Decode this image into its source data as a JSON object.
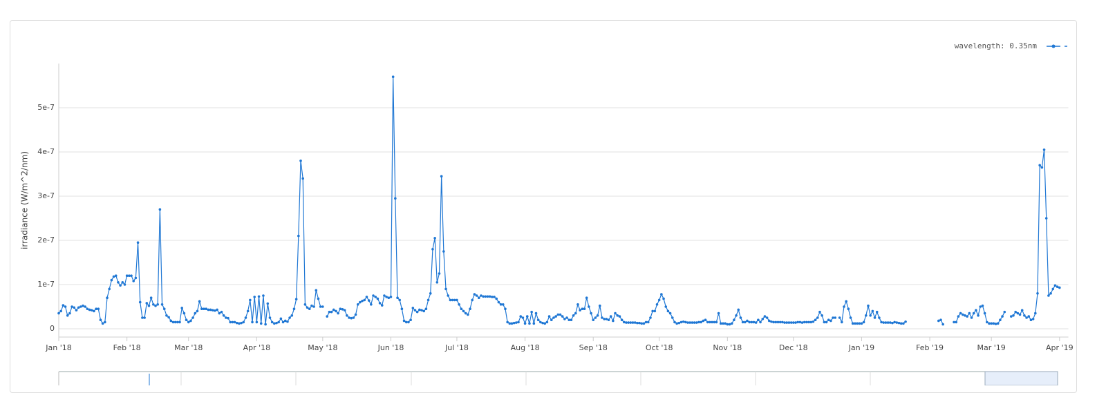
{
  "chart_data": {
    "type": "line",
    "y_label": "irradiance (W/m^2/nm)",
    "xlim": [
      0,
      459
    ],
    "xticks": [
      {
        "value": 0,
        "label": "Jan '18"
      },
      {
        "value": 31,
        "label": "Feb '18"
      },
      {
        "value": 59,
        "label": "Mar '18"
      },
      {
        "value": 90,
        "label": "Apr '18"
      },
      {
        "value": 120,
        "label": "May '18"
      },
      {
        "value": 151,
        "label": "Jun '18"
      },
      {
        "value": 181,
        "label": "Jul '18"
      },
      {
        "value": 212,
        "label": "Aug '18"
      },
      {
        "value": 243,
        "label": "Sep '18"
      },
      {
        "value": 273,
        "label": "Oct '18"
      },
      {
        "value": 304,
        "label": "Nov '18"
      },
      {
        "value": 334,
        "label": "Dec '18"
      },
      {
        "value": 365,
        "label": "Jan '19"
      },
      {
        "value": 396,
        "label": "Feb '19"
      },
      {
        "value": 424,
        "label": "Mar '19"
      },
      {
        "value": 455,
        "label": "Apr '19"
      }
    ],
    "ylim": [
      0,
      6e-07
    ],
    "yticks": [
      0,
      {
        "value": 1e-07,
        "label": "1e-7"
      },
      {
        "value": 2e-07,
        "label": "2e-7"
      },
      {
        "value": 3e-07,
        "label": "3e-7"
      },
      {
        "value": 4e-07,
        "label": "4e-7"
      },
      {
        "value": 5e-07,
        "label": "5e-7"
      }
    ],
    "grid": true,
    "legend": "top-right",
    "series": [
      {
        "name": "wavelength: 0.35nm",
        "color": "#1f77d4",
        "values": [
          3.5e-08,
          4e-08,
          5.3e-08,
          5e-08,
          3e-08,
          3.5e-08,
          5e-08,
          4.8e-08,
          4.2e-08,
          4.8e-08,
          5e-08,
          5.2e-08,
          5e-08,
          4.5e-08,
          4.3e-08,
          4.2e-08,
          4e-08,
          4.5e-08,
          4.5e-08,
          2e-08,
          1.2e-08,
          1.5e-08,
          7e-08,
          9e-08,
          1.1e-07,
          1.18e-07,
          1.2e-07,
          1.05e-07,
          9.8e-08,
          1.05e-07,
          1e-07,
          1.2e-07,
          1.2e-07,
          1.2e-07,
          1.08e-07,
          1.15e-07,
          1.95e-07,
          6e-08,
          2.5e-08,
          2.5e-08,
          5.8e-08,
          5.2e-08,
          7e-08,
          5.5e-08,
          5.2e-08,
          5.5e-08,
          2.7e-07,
          5.5e-08,
          4.5e-08,
          3e-08,
          2.6e-08,
          1.8e-08,
          1.5e-08,
          1.5e-08,
          1.5e-08,
          1.5e-08,
          4.7e-08,
          3.5e-08,
          2e-08,
          1.5e-08,
          1.8e-08,
          2.5e-08,
          3.5e-08,
          4e-08,
          6.2e-08,
          4.5e-08,
          4.5e-08,
          4.5e-08,
          4.3e-08,
          4.3e-08,
          4.2e-08,
          4.1e-08,
          4.3e-08,
          3.5e-08,
          3.8e-08,
          3e-08,
          2.5e-08,
          2.4e-08,
          1.5e-08,
          1.5e-08,
          1.5e-08,
          1.3e-08,
          1.2e-08,
          1.3e-08,
          1.5e-08,
          2.5e-08,
          4e-08,
          6.5e-08,
          1.5e-08,
          7.2e-08,
          1.5e-08,
          7.3e-08,
          1.2e-08,
          7.5e-08,
          1e-08,
          5.7e-08,
          2.5e-08,
          1.5e-08,
          1.2e-08,
          1.3e-08,
          1.5e-08,
          2.3e-08,
          1.5e-08,
          1.8e-08,
          1.6e-08,
          2.5e-08,
          3e-08,
          4.5e-08,
          6.7e-08,
          2.1e-07,
          3.8e-07,
          3.4e-07,
          5.5e-08,
          4.8e-08,
          4.5e-08,
          5.2e-08,
          5e-08,
          8.7e-08,
          6.8e-08,
          5e-08,
          5e-08,
          null,
          2.8e-08,
          3.8e-08,
          3.8e-08,
          4.3e-08,
          4e-08,
          3.5e-08,
          4.5e-08,
          4.4e-08,
          4.2e-08,
          3e-08,
          2.5e-08,
          2.4e-08,
          2.5e-08,
          3.2e-08,
          5.5e-08,
          6e-08,
          6.3e-08,
          6.5e-08,
          7.2e-08,
          6.4e-08,
          5.5e-08,
          7.5e-08,
          7.2e-08,
          6.8e-08,
          5.8e-08,
          5.3e-08,
          7.5e-08,
          7.2e-08,
          7e-08,
          7.2e-08,
          5.7e-07,
          2.95e-07,
          7e-08,
          6.5e-08,
          4.5e-08,
          1.8e-08,
          1.5e-08,
          1.5e-08,
          2e-08,
          4.7e-08,
          4.2e-08,
          3.8e-08,
          4.3e-08,
          4.2e-08,
          4e-08,
          4.5e-08,
          6.5e-08,
          8e-08,
          1.8e-07,
          2.05e-07,
          1.05e-07,
          1.25e-07,
          3.45e-07,
          1.75e-07,
          9e-08,
          7.5e-08,
          6.5e-08,
          6.5e-08,
          6.5e-08,
          6.5e-08,
          5.5e-08,
          4.5e-08,
          4e-08,
          3.5e-08,
          3.2e-08,
          4.5e-08,
          6.5e-08,
          7.8e-08,
          7.5e-08,
          7e-08,
          7.5e-08,
          7.3e-08,
          7.3e-08,
          7.3e-08,
          7.3e-08,
          7.2e-08,
          7.2e-08,
          6.8e-08,
          6e-08,
          5.5e-08,
          5.5e-08,
          4.5e-08,
          1.5e-08,
          1.2e-08,
          1.2e-08,
          1.3e-08,
          1.4e-08,
          1.5e-08,
          2.8e-08,
          2.5e-08,
          1.2e-08,
          2.8e-08,
          1.2e-08,
          3.8e-08,
          1.2e-08,
          3.5e-08,
          2e-08,
          1.5e-08,
          1.3e-08,
          1.2e-08,
          1.5e-08,
          2.8e-08,
          2e-08,
          2.5e-08,
          2.8e-08,
          3.2e-08,
          3.2e-08,
          2.8e-08,
          2.2e-08,
          2.5e-08,
          2e-08,
          2e-08,
          3e-08,
          3.5e-08,
          5.5e-08,
          4.2e-08,
          4.5e-08,
          4.5e-08,
          7e-08,
          5e-08,
          3.5e-08,
          2e-08,
          2.5e-08,
          3e-08,
          5.2e-08,
          2.5e-08,
          2.2e-08,
          2.2e-08,
          2e-08,
          2.8e-08,
          1.8e-08,
          3.5e-08,
          3e-08,
          2.8e-08,
          2e-08,
          1.5e-08,
          1.4e-08,
          1.4e-08,
          1.4e-08,
          1.4e-08,
          1.4e-08,
          1.3e-08,
          1.3e-08,
          1.2e-08,
          1.2e-08,
          1.5e-08,
          1.5e-08,
          2.5e-08,
          4e-08,
          4e-08,
          5.5e-08,
          6.5e-08,
          7.8e-08,
          6.8e-08,
          5e-08,
          4e-08,
          3.5e-08,
          2.5e-08,
          1.5e-08,
          1.2e-08,
          1.3e-08,
          1.5e-08,
          1.6e-08,
          1.5e-08,
          1.4e-08,
          1.4e-08,
          1.4e-08,
          1.4e-08,
          1.4e-08,
          1.5e-08,
          1.5e-08,
          1.8e-08,
          2e-08,
          1.5e-08,
          1.5e-08,
          1.5e-08,
          1.5e-08,
          1.5e-08,
          3.5e-08,
          1.2e-08,
          1.2e-08,
          1.2e-08,
          1e-08,
          1e-08,
          1.2e-08,
          2e-08,
          3e-08,
          4.3e-08,
          2.5e-08,
          1.5e-08,
          1.5e-08,
          1.8e-08,
          1.5e-08,
          1.5e-08,
          1.5e-08,
          1.4e-08,
          2e-08,
          1.5e-08,
          2.2e-08,
          2.8e-08,
          2.5e-08,
          1.8e-08,
          1.6e-08,
          1.5e-08,
          1.5e-08,
          1.5e-08,
          1.5e-08,
          1.5e-08,
          1.4e-08,
          1.4e-08,
          1.4e-08,
          1.4e-08,
          1.4e-08,
          1.4e-08,
          1.5e-08,
          1.5e-08,
          1.4e-08,
          1.5e-08,
          1.5e-08,
          1.5e-08,
          1.5e-08,
          1.6e-08,
          2e-08,
          2.5e-08,
          3.8e-08,
          3e-08,
          1.5e-08,
          1.5e-08,
          2e-08,
          1.8e-08,
          2.5e-08,
          2.5e-08,
          null,
          2.5e-08,
          1.5e-08,
          5e-08,
          6.2e-08,
          4.5e-08,
          2.5e-08,
          1.2e-08,
          1.2e-08,
          1.2e-08,
          1.2e-08,
          1.2e-08,
          1.5e-08,
          3e-08,
          5.2e-08,
          3e-08,
          4e-08,
          2.5e-08,
          3.8e-08,
          2.5e-08,
          1.5e-08,
          1.4e-08,
          1.4e-08,
          1.4e-08,
          1.4e-08,
          1.3e-08,
          1.5e-08,
          1.4e-08,
          1.3e-08,
          1.2e-08,
          1.2e-08,
          1.6e-08,
          null,
          null,
          null,
          null,
          null,
          null,
          null,
          null,
          null,
          null,
          null,
          null,
          null,
          null,
          1.8e-08,
          2e-08,
          1e-08,
          null,
          null,
          null,
          null,
          1.5e-08,
          1.5e-08,
          2.8e-08,
          3.5e-08,
          3.2e-08,
          3e-08,
          2.8e-08,
          3.5e-08,
          2.5e-08,
          3.5e-08,
          4.2e-08,
          3e-08,
          5e-08,
          5.2e-08,
          3.5e-08,
          1.5e-08,
          1.2e-08,
          1.2e-08,
          1.2e-08,
          1.1e-08,
          1.2e-08,
          2e-08,
          2.8e-08,
          3.8e-08,
          null,
          null,
          2.8e-08,
          3e-08,
          3.8e-08,
          3.5e-08,
          3.2e-08,
          4.2e-08,
          3e-08,
          2.5e-08,
          2.8e-08,
          2e-08,
          2.2e-08,
          3.5e-08,
          8e-08,
          3.7e-07,
          3.65e-07,
          4.05e-07,
          2.5e-07,
          7.5e-08,
          8e-08,
          9e-08,
          9.8e-08,
          9.5e-08,
          9.3e-08
        ]
      }
    ]
  }
}
